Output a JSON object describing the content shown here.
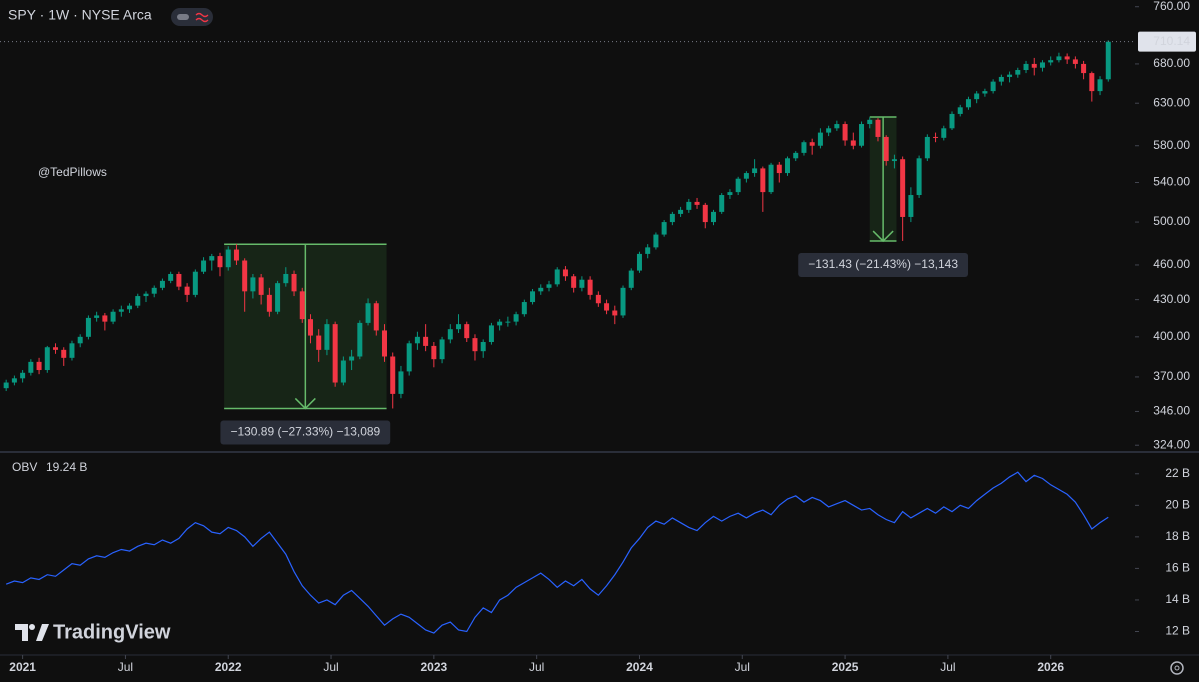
{
  "brand": "TradingView",
  "chart_data": [
    {
      "type": "candlestick",
      "title": "SPY · 1W · NYSE Arca",
      "annotation": "@TedPillows",
      "log_scale": true,
      "grid": false,
      "up_color": "#089981",
      "down_color": "#f23645",
      "xlim": [
        2020.89,
        2026.41
      ],
      "ylim": [
        321,
        770
      ],
      "xticks": [
        2021,
        {
          "value": 2021.5,
          "label": "Jul"
        },
        2022,
        {
          "value": 2022.5,
          "label": "Jul"
        },
        2023,
        {
          "value": 2023.5,
          "label": "Jul"
        },
        2024,
        {
          "value": 2024.5,
          "label": "Jul"
        },
        2025,
        {
          "value": 2025.5,
          "label": "Jul"
        },
        2026
      ],
      "yticks": [
        {
          "value": 760,
          "label": "760.00"
        },
        {
          "value": 680,
          "label": "680.00"
        },
        {
          "value": 630,
          "label": "630.00"
        },
        {
          "value": 580,
          "label": "580.00"
        },
        {
          "value": 540,
          "label": "540.00"
        },
        {
          "value": 500,
          "label": "500.00"
        },
        {
          "value": 460,
          "label": "460.00"
        },
        {
          "value": 430,
          "label": "430.00"
        },
        {
          "value": 400,
          "label": "400.00"
        },
        {
          "value": 370,
          "label": "370.00"
        },
        {
          "value": 346,
          "label": "346.00"
        },
        {
          "value": 324,
          "label": "324.00"
        }
      ],
      "last_price": 710.14,
      "measurements": [
        {
          "x0": 2021.98,
          "x1": 2022.77,
          "from": 478.9,
          "to": 348.0,
          "label": "−130.89 (−27.33%) −13,089"
        },
        {
          "x0": 2025.12,
          "x1": 2025.25,
          "from": 613.3,
          "to": 481.9,
          "label": "−131.43 (−21.43%) −13,143"
        }
      ],
      "x": [
        2020.92,
        2020.96,
        2021,
        2021.04,
        2021.08,
        2021.12,
        2021.16,
        2021.2,
        2021.24,
        2021.28,
        2021.32,
        2021.36,
        2021.4,
        2021.44,
        2021.48,
        2021.52,
        2021.56,
        2021.6,
        2021.64,
        2021.68,
        2021.72,
        2021.76,
        2021.8,
        2021.84,
        2021.88,
        2021.92,
        2021.96,
        2022,
        2022.04,
        2022.08,
        2022.12,
        2022.16,
        2022.2,
        2022.24,
        2022.28,
        2022.32,
        2022.36,
        2022.4,
        2022.44,
        2022.48,
        2022.52,
        2022.56,
        2022.6,
        2022.64,
        2022.68,
        2022.72,
        2022.76,
        2022.8,
        2022.84,
        2022.88,
        2022.92,
        2022.96,
        2023,
        2023.04,
        2023.08,
        2023.12,
        2023.16,
        2023.2,
        2023.24,
        2023.28,
        2023.32,
        2023.36,
        2023.4,
        2023.44,
        2023.48,
        2023.52,
        2023.56,
        2023.6,
        2023.64,
        2023.68,
        2023.72,
        2023.76,
        2023.8,
        2023.84,
        2023.88,
        2023.92,
        2023.96,
        2024,
        2024.04,
        2024.08,
        2024.12,
        2024.16,
        2024.2,
        2024.24,
        2024.28,
        2024.32,
        2024.36,
        2024.4,
        2024.44,
        2024.48,
        2024.52,
        2024.56,
        2024.6,
        2024.64,
        2024.68,
        2024.72,
        2024.76,
        2024.8,
        2024.84,
        2024.88,
        2024.92,
        2024.96,
        2025,
        2025.04,
        2025.08,
        2025.12,
        2025.16,
        2025.2,
        2025.24,
        2025.28,
        2025.32,
        2025.36,
        2025.4,
        2025.44,
        2025.48,
        2025.52,
        2025.56,
        2025.6,
        2025.64,
        2025.68,
        2025.72,
        2025.76,
        2025.8,
        2025.84,
        2025.88,
        2025.92,
        2025.96,
        2026,
        2026.04,
        2026.08,
        2026.12,
        2026.16,
        2026.2,
        2026.24,
        2026.28
      ],
      "open": [
        362,
        366,
        369,
        373,
        381,
        375,
        392,
        390,
        384,
        395,
        400,
        415,
        417,
        412,
        420,
        422,
        425,
        433,
        435,
        440,
        446,
        452,
        441,
        434,
        454,
        464,
        468,
        458,
        474,
        464,
        437,
        449,
        434,
        420,
        444,
        452,
        437,
        414,
        401,
        390,
        410,
        366,
        382,
        385,
        411,
        427,
        405,
        385,
        358,
        374,
        395,
        400,
        393,
        383,
        398,
        406,
        410,
        399,
        389,
        396,
        409,
        412,
        412,
        418,
        428,
        437,
        440,
        443,
        456,
        450,
        440,
        447,
        434,
        427,
        421,
        417,
        440,
        455,
        470,
        476,
        488,
        500,
        508,
        512,
        520,
        517,
        500,
        510,
        527,
        530,
        544,
        550,
        555,
        530,
        559,
        550,
        566,
        572,
        584,
        580,
        595,
        600,
        605,
        586,
        580,
        605,
        610,
        590,
        563,
        565,
        505,
        527,
        566,
        590,
        589,
        600,
        617,
        625,
        635,
        642,
        645,
        657,
        663,
        666,
        672,
        680,
        675,
        682,
        685,
        690,
        686,
        680,
        668,
        645,
        660
      ],
      "high": [
        368,
        371,
        375,
        383,
        384,
        393,
        395,
        392,
        397,
        402,
        417,
        420,
        419,
        422,
        425,
        427,
        435,
        437,
        442,
        448,
        454,
        454,
        444,
        456,
        467,
        470,
        471,
        477,
        479,
        466,
        452,
        452,
        440,
        446,
        458,
        455,
        440,
        418,
        406,
        414,
        412,
        385,
        390,
        413,
        431,
        429,
        410,
        388,
        378,
        397,
        404,
        410,
        396,
        400,
        410,
        418,
        412,
        402,
        398,
        411,
        414,
        416,
        420,
        430,
        439,
        443,
        446,
        458,
        459,
        452,
        450,
        450,
        437,
        430,
        425,
        442,
        457,
        472,
        479,
        490,
        502,
        510,
        515,
        523,
        524,
        519,
        512,
        529,
        533,
        546,
        552,
        565,
        557,
        561,
        562,
        568,
        574,
        586,
        588,
        600,
        603,
        609,
        608,
        595,
        608,
        613,
        612,
        592,
        570,
        568,
        535,
        569,
        593,
        595,
        603,
        620,
        628,
        638,
        645,
        648,
        660,
        666,
        670,
        675,
        684,
        688,
        685,
        690,
        695,
        694,
        690,
        684,
        670,
        664,
        712
      ],
      "low": [
        360,
        364,
        366,
        371,
        372,
        373,
        387,
        378,
        382,
        392,
        398,
        412,
        405,
        410,
        416,
        419,
        423,
        428,
        432,
        438,
        444,
        438,
        428,
        432,
        452,
        455,
        450,
        455,
        460,
        420,
        431,
        426,
        416,
        418,
        441,
        433,
        411,
        395,
        381,
        386,
        363,
        364,
        375,
        383,
        409,
        401,
        381,
        348,
        355,
        371,
        390,
        389,
        377,
        380,
        395,
        403,
        396,
        382,
        384,
        394,
        405,
        408,
        409,
        416,
        426,
        434,
        437,
        441,
        446,
        436,
        437,
        430,
        424,
        418,
        410,
        415,
        438,
        453,
        466,
        474,
        486,
        497,
        505,
        509,
        513,
        494,
        497,
        508,
        523,
        527,
        540,
        546,
        510,
        528,
        540,
        547,
        563,
        569,
        570,
        577,
        591,
        597,
        580,
        576,
        578,
        600,
        585,
        558,
        555,
        482,
        500,
        524,
        563,
        584,
        586,
        598,
        614,
        622,
        630,
        638,
        642,
        652,
        656,
        662,
        668,
        665,
        670,
        678,
        682,
        680,
        674,
        660,
        632,
        640,
        657
      ],
      "close": [
        366,
        369,
        373,
        381,
        375,
        392,
        390,
        384,
        395,
        400,
        415,
        417,
        412,
        420,
        422,
        425,
        433,
        435,
        440,
        446,
        452,
        441,
        434,
        454,
        464,
        468,
        458,
        474,
        464,
        437,
        449,
        434,
        420,
        444,
        452,
        437,
        414,
        401,
        390,
        410,
        366,
        382,
        385,
        411,
        427,
        405,
        385,
        358,
        374,
        395,
        400,
        393,
        383,
        398,
        406,
        410,
        399,
        389,
        396,
        409,
        412,
        412,
        418,
        428,
        437,
        440,
        443,
        456,
        450,
        440,
        447,
        434,
        427,
        421,
        417,
        440,
        455,
        470,
        476,
        488,
        500,
        508,
        512,
        520,
        517,
        500,
        510,
        527,
        530,
        544,
        550,
        555,
        530,
        559,
        550,
        566,
        572,
        584,
        580,
        595,
        600,
        605,
        586,
        580,
        605,
        610,
        590,
        563,
        565,
        505,
        527,
        566,
        590,
        589,
        600,
        617,
        625,
        635,
        642,
        645,
        657,
        663,
        666,
        672,
        680,
        675,
        682,
        685,
        690,
        686,
        680,
        668,
        645,
        660,
        710
      ]
    },
    {
      "type": "line",
      "last_value_label": "19.24 B",
      "ylim": [
        10.7,
        23.0
      ],
      "yticks": [
        {
          "value": 22,
          "label": "22 B"
        },
        {
          "value": 20,
          "label": "20 B"
        },
        {
          "value": 18,
          "label": "18 B"
        },
        {
          "value": 16,
          "label": "16 B"
        },
        {
          "value": 14,
          "label": "14 B"
        },
        {
          "value": 12,
          "label": "12 B"
        }
      ],
      "series": [
        {
          "name": "OBV",
          "color": "#2962ff",
          "values": [
            15.0,
            15.2,
            15.1,
            15.4,
            15.3,
            15.6,
            15.5,
            15.9,
            16.3,
            16.2,
            16.6,
            16.8,
            16.7,
            17.0,
            17.2,
            17.1,
            17.4,
            17.6,
            17.5,
            17.8,
            17.6,
            17.9,
            18.5,
            18.9,
            18.7,
            18.3,
            18.2,
            18.6,
            18.4,
            18.0,
            17.4,
            17.9,
            18.3,
            17.6,
            16.9,
            15.8,
            14.9,
            14.3,
            13.8,
            14.0,
            13.7,
            14.3,
            14.6,
            14.1,
            13.6,
            13.0,
            12.4,
            12.8,
            13.1,
            12.9,
            12.5,
            12.1,
            11.9,
            12.4,
            12.6,
            12.1,
            12.0,
            12.9,
            13.5,
            13.2,
            14.0,
            14.3,
            14.8,
            15.1,
            15.4,
            15.7,
            15.3,
            14.8,
            15.2,
            14.9,
            15.3,
            14.7,
            14.3,
            14.9,
            15.6,
            16.4,
            17.3,
            17.9,
            18.6,
            19.0,
            18.8,
            19.2,
            18.9,
            18.6,
            18.4,
            18.9,
            19.3,
            19.0,
            19.3,
            19.5,
            19.2,
            19.5,
            19.7,
            19.4,
            20.0,
            20.4,
            20.6,
            20.2,
            20.5,
            20.3,
            19.9,
            20.1,
            20.3,
            20.0,
            19.7,
            19.8,
            19.4,
            19.1,
            18.9,
            19.6,
            19.2,
            19.5,
            19.8,
            19.5,
            19.9,
            19.6,
            20.0,
            19.8,
            20.3,
            20.7,
            21.1,
            21.4,
            21.8,
            22.1,
            21.5,
            21.9,
            21.7,
            21.3,
            21.0,
            20.7,
            20.2,
            19.4,
            18.5,
            18.9,
            19.24
          ]
        }
      ]
    }
  ]
}
